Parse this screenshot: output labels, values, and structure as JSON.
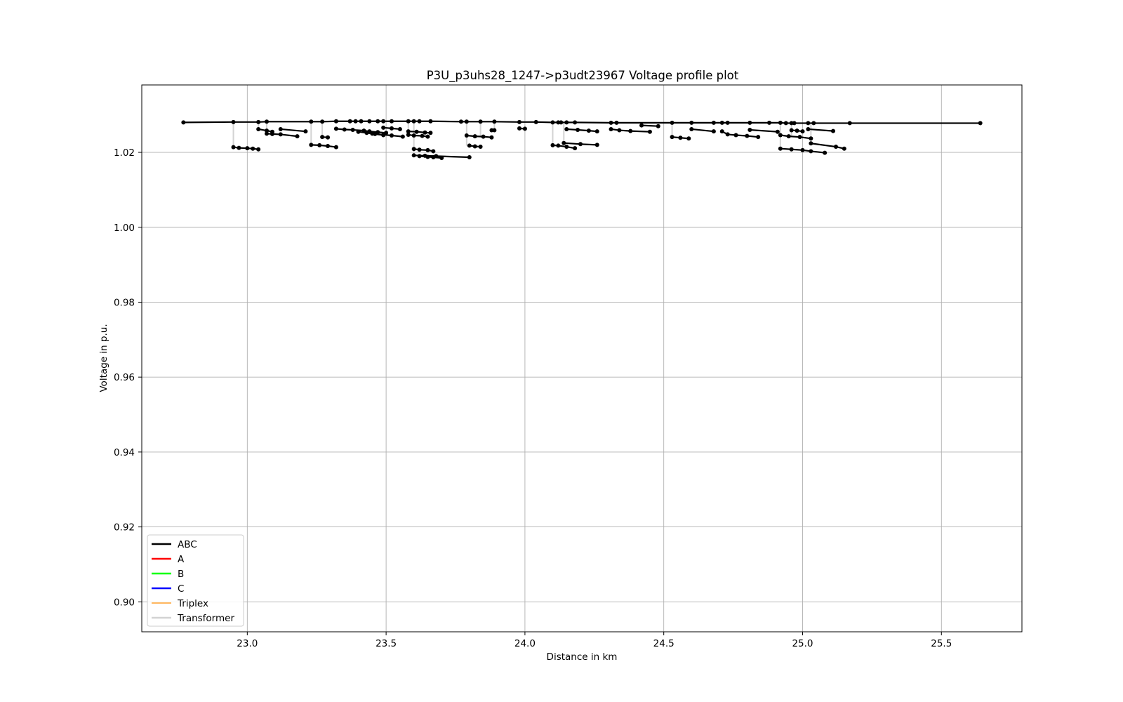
{
  "chart_data": {
    "type": "line",
    "title": "P3U_p3uhs28_1247->p3udt23967 Voltage profile plot",
    "xlabel": "Distance in km",
    "ylabel": "Voltage in p.u.",
    "xlim": [
      22.62,
      25.79
    ],
    "ylim": [
      0.892,
      1.038
    ],
    "xticks": [
      23.0,
      23.5,
      24.0,
      24.5,
      25.0,
      25.5
    ],
    "xtick_labels": [
      "23.0",
      "23.5",
      "24.0",
      "24.5",
      "25.0",
      "25.5"
    ],
    "yticks": [
      0.9,
      0.92,
      0.94,
      0.96,
      0.98,
      1.0,
      1.02
    ],
    "ytick_labels": [
      "0.90",
      "0.92",
      "0.94",
      "0.96",
      "0.98",
      "1.00",
      "1.02"
    ],
    "grid": true,
    "legend_position": "lower-left",
    "legend": [
      {
        "label": "ABC",
        "color": "#000000"
      },
      {
        "label": "A",
        "color": "#ff0000"
      },
      {
        "label": "B",
        "color": "#00ff00"
      },
      {
        "label": "C",
        "color": "#0000ff"
      },
      {
        "label": "Triplex",
        "color": "#ff8c00"
      },
      {
        "label": "Transformer",
        "color": "#d3d3d3"
      }
    ],
    "main_feeder": {
      "name": "ABC",
      "x": [
        22.77,
        22.95,
        23.04,
        23.07,
        23.23,
        23.27,
        23.32,
        23.37,
        23.39,
        23.41,
        23.44,
        23.47,
        23.49,
        23.52,
        23.58,
        23.6,
        23.62,
        23.66,
        23.77,
        23.79,
        23.84,
        23.89,
        23.98,
        24.04,
        24.1,
        24.12,
        24.13,
        24.15,
        24.18,
        24.31,
        24.33,
        24.53,
        24.6,
        24.68,
        24.71,
        24.73,
        24.81,
        24.88,
        24.92,
        24.94,
        24.96,
        24.97,
        25.02,
        25.04,
        25.17,
        25.64
      ],
      "y": [
        1.028,
        1.0281,
        1.0281,
        1.0282,
        1.0282,
        1.0282,
        1.0283,
        1.0283,
        1.0283,
        1.0283,
        1.0283,
        1.0283,
        1.0283,
        1.0283,
        1.0283,
        1.0283,
        1.0283,
        1.0283,
        1.0282,
        1.0282,
        1.0282,
        1.0282,
        1.0281,
        1.0281,
        1.028,
        1.028,
        1.028,
        1.028,
        1.028,
        1.0279,
        1.0279,
        1.0279,
        1.0279,
        1.0279,
        1.0279,
        1.0279,
        1.0279,
        1.0279,
        1.0279,
        1.0278,
        1.0278,
        1.0278,
        1.0278,
        1.0278,
        1.0278,
        1.0278
      ]
    },
    "laterals": [
      {
        "name": "ABC",
        "x": [
          22.95,
          22.97,
          23.0,
          23.02,
          23.04
        ],
        "y": [
          1.0214,
          1.0212,
          1.0211,
          1.021,
          1.0208
        ]
      },
      {
        "name": "ABC",
        "x": [
          23.04,
          23.07,
          23.09
        ],
        "y": [
          1.0262,
          1.0258,
          1.0255
        ]
      },
      {
        "name": "ABC",
        "x": [
          23.07,
          23.09,
          23.12,
          23.18
        ],
        "y": [
          1.025,
          1.0249,
          1.0248,
          1.0243
        ]
      },
      {
        "name": "ABC",
        "x": [
          23.12,
          23.21
        ],
        "y": [
          1.0262,
          1.0256
        ]
      },
      {
        "name": "ABC",
        "x": [
          23.23,
          23.26,
          23.29,
          23.32
        ],
        "y": [
          1.022,
          1.0219,
          1.0217,
          1.0214
        ]
      },
      {
        "name": "ABC",
        "x": [
          23.27,
          23.29
        ],
        "y": [
          1.0241,
          1.024
        ]
      },
      {
        "name": "ABC",
        "x": [
          23.32,
          23.35,
          23.38,
          23.42,
          23.44,
          23.47,
          23.5
        ],
        "y": [
          1.0263,
          1.0261,
          1.026,
          1.0258,
          1.0256,
          1.0254,
          1.0252
        ]
      },
      {
        "name": "ABC",
        "x": [
          23.4,
          23.43,
          23.46,
          23.49
        ],
        "y": [
          1.0255,
          1.0252,
          1.0249,
          1.0246
        ]
      },
      {
        "name": "ABC",
        "x": [
          23.45,
          23.49,
          23.52,
          23.56
        ],
        "y": [
          1.025,
          1.0247,
          1.0245,
          1.0242
        ]
      },
      {
        "name": "ABC",
        "x": [
          23.49,
          23.52,
          23.55
        ],
        "y": [
          1.0266,
          1.0264,
          1.0262
        ]
      },
      {
        "name": "ABC",
        "x": [
          23.58,
          23.61,
          23.64,
          23.66
        ],
        "y": [
          1.0256,
          1.0255,
          1.0253,
          1.0252
        ]
      },
      {
        "name": "ABC",
        "x": [
          23.58,
          23.6,
          23.63,
          23.65
        ],
        "y": [
          1.0247,
          1.0245,
          1.0244,
          1.0242
        ]
      },
      {
        "name": "ABC",
        "x": [
          23.6,
          23.62,
          23.65,
          23.67
        ],
        "y": [
          1.0209,
          1.0207,
          1.0206,
          1.0203
        ]
      },
      {
        "name": "ABC",
        "x": [
          23.6,
          23.64,
          23.68,
          23.8
        ],
        "y": [
          1.0192,
          1.0191,
          1.019,
          1.0187
        ]
      },
      {
        "name": "ABC",
        "x": [
          23.62,
          23.65,
          23.67,
          23.7
        ],
        "y": [
          1.019,
          1.0188,
          1.0187,
          1.0185
        ]
      },
      {
        "name": "ABC",
        "x": [
          23.79,
          23.82,
          23.85,
          23.88
        ],
        "y": [
          1.0245,
          1.0243,
          1.0242,
          1.024
        ]
      },
      {
        "name": "ABC",
        "x": [
          23.8,
          23.82,
          23.84
        ],
        "y": [
          1.0218,
          1.0216,
          1.0215
        ]
      },
      {
        "name": "ABC",
        "x": [
          23.88,
          23.89
        ],
        "y": [
          1.0259,
          1.0259
        ]
      },
      {
        "name": "ABC",
        "x": [
          23.98,
          24.0
        ],
        "y": [
          1.0264,
          1.0263
        ]
      },
      {
        "name": "ABC",
        "x": [
          24.1,
          24.12,
          24.15,
          24.18
        ],
        "y": [
          1.0219,
          1.0218,
          1.0215,
          1.0211
        ]
      },
      {
        "name": "ABC",
        "x": [
          24.15,
          24.19,
          24.23,
          24.26
        ],
        "y": [
          1.0262,
          1.026,
          1.0258,
          1.0256
        ]
      },
      {
        "name": "ABC",
        "x": [
          24.14,
          24.2,
          24.26
        ],
        "y": [
          1.0225,
          1.0222,
          1.022
        ]
      },
      {
        "name": "ABC",
        "x": [
          24.31,
          24.34,
          24.38,
          24.45
        ],
        "y": [
          1.0262,
          1.0259,
          1.0257,
          1.0255
        ]
      },
      {
        "name": "ABC",
        "x": [
          24.42,
          24.48
        ],
        "y": [
          1.0272,
          1.027
        ]
      },
      {
        "name": "ABC",
        "x": [
          24.53,
          24.56,
          24.59
        ],
        "y": [
          1.0241,
          1.0239,
          1.0237
        ]
      },
      {
        "name": "ABC",
        "x": [
          24.6,
          24.68
        ],
        "y": [
          1.0262,
          1.0256
        ]
      },
      {
        "name": "ABC",
        "x": [
          24.71,
          24.73,
          24.76,
          24.8,
          24.84
        ],
        "y": [
          1.0256,
          1.0248,
          1.0246,
          1.0244,
          1.0241
        ]
      },
      {
        "name": "ABC",
        "x": [
          24.81,
          24.91
        ],
        "y": [
          1.026,
          1.0255
        ]
      },
      {
        "name": "ABC",
        "x": [
          24.92,
          24.95,
          24.99,
          25.03
        ],
        "y": [
          1.0246,
          1.0243,
          1.0241,
          1.0237
        ]
      },
      {
        "name": "ABC",
        "x": [
          24.96,
          24.98,
          25.0
        ],
        "y": [
          1.0259,
          1.0258,
          1.0256
        ]
      },
      {
        "name": "ABC",
        "x": [
          25.02,
          25.11
        ],
        "y": [
          1.0262,
          1.0257
        ]
      },
      {
        "name": "ABC",
        "x": [
          24.92,
          24.96,
          25.0,
          25.03,
          25.08
        ],
        "y": [
          1.021,
          1.0208,
          1.0206,
          1.0203,
          1.0199
        ]
      },
      {
        "name": "ABC",
        "x": [
          25.03,
          25.12,
          25.15
        ],
        "y": [
          1.0224,
          1.0215,
          1.021
        ]
      }
    ],
    "transformers": [
      {
        "x": 22.95,
        "y_from": 1.0281,
        "y_to": 1.0214
      },
      {
        "x": 23.04,
        "y_from": 1.0281,
        "y_to": 1.0262
      },
      {
        "x": 23.07,
        "y_from": 1.0282,
        "y_to": 1.025
      },
      {
        "x": 23.23,
        "y_from": 1.0282,
        "y_to": 1.022
      },
      {
        "x": 23.27,
        "y_from": 1.0282,
        "y_to": 1.0241
      },
      {
        "x": 23.58,
        "y_from": 1.0283,
        "y_to": 1.0247
      },
      {
        "x": 23.6,
        "y_from": 1.0283,
        "y_to": 1.0192
      },
      {
        "x": 23.79,
        "y_from": 1.0282,
        "y_to": 1.0218
      },
      {
        "x": 23.84,
        "y_from": 1.0282,
        "y_to": 1.024
      },
      {
        "x": 23.89,
        "y_from": 1.0282,
        "y_to": 1.0259
      },
      {
        "x": 24.1,
        "y_from": 1.028,
        "y_to": 1.0219
      },
      {
        "x": 24.14,
        "y_from": 1.028,
        "y_to": 1.0225
      },
      {
        "x": 24.53,
        "y_from": 1.0279,
        "y_to": 1.0241
      },
      {
        "x": 24.92,
        "y_from": 1.0279,
        "y_to": 1.021
      },
      {
        "x": 24.96,
        "y_from": 1.0278,
        "y_to": 1.0241
      },
      {
        "x": 25.03,
        "y_from": 1.0278,
        "y_to": 1.0224
      }
    ]
  }
}
